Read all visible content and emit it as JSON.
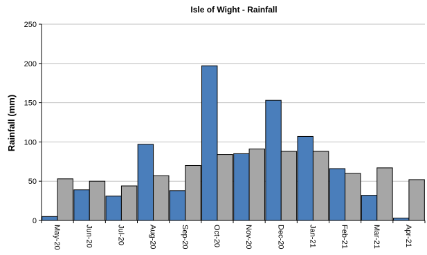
{
  "chart_data": {
    "type": "bar",
    "title": "Isle of Wight - Rainfall",
    "xlabel": "",
    "ylabel": "Rainfall (mm)",
    "ylim": [
      0,
      250
    ],
    "yticks": [
      "0",
      "50",
      "100",
      "150",
      "200",
      "250"
    ],
    "grid": true,
    "legend": "none",
    "categories": [
      "May-20",
      "Jun-20",
      "Jul-20",
      "Aug-20",
      "Sep-20",
      "Oct-20",
      "Nov-20",
      "Dec-20",
      "Jan-21",
      "Feb-21",
      "Mar-21",
      "Apr-21"
    ],
    "series": [
      {
        "color": "#4a7ebb",
        "values": [
          5,
          39,
          31,
          97,
          38,
          197,
          85,
          153,
          107,
          66,
          32,
          3
        ]
      },
      {
        "color": "#a6a6a6",
        "values": [
          53,
          50,
          44,
          57,
          70,
          84,
          91,
          88,
          88,
          60,
          67,
          52
        ]
      }
    ]
  }
}
